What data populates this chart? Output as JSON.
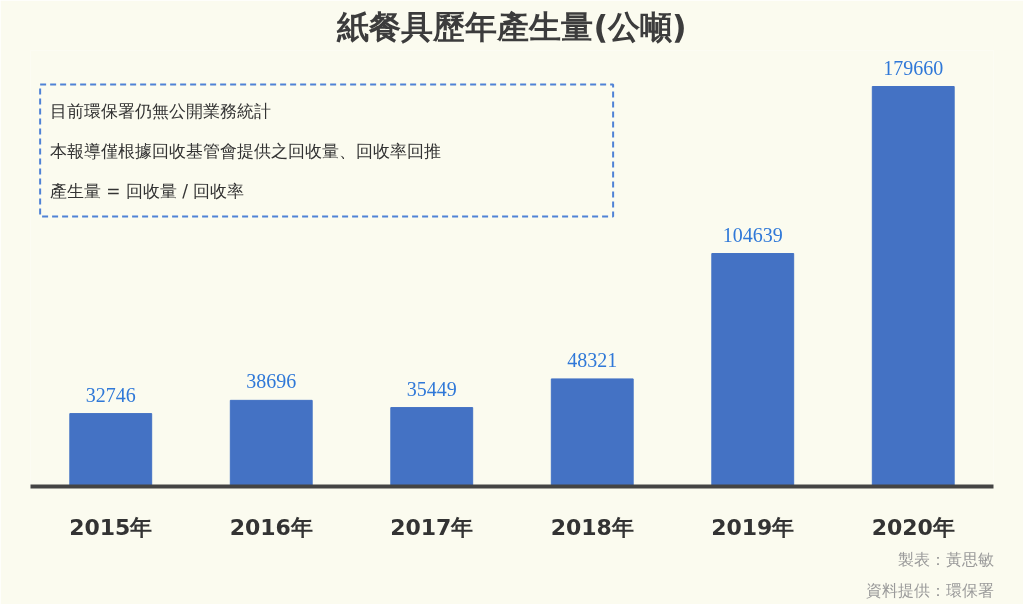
{
  "chart_data": {
    "type": "bar",
    "title": "紙餐具歷年產生量(公噸)",
    "categories": [
      "2015年",
      "2016年",
      "2017年",
      "2018年",
      "2019年",
      "2020年"
    ],
    "values": [
      32746,
      38696,
      35449,
      48321,
      104639,
      179660
    ],
    "color": "#4472c4",
    "data_labels": true,
    "grid": false,
    "annotations": [
      "目前環保署仍無公開業務統計",
      "本報導僅根據回收基管會提供之回收量、回收率回推",
      "產生量 = 回收量 / 回收率",
      "製表：黃思敏",
      "資料提供：環保署"
    ]
  }
}
